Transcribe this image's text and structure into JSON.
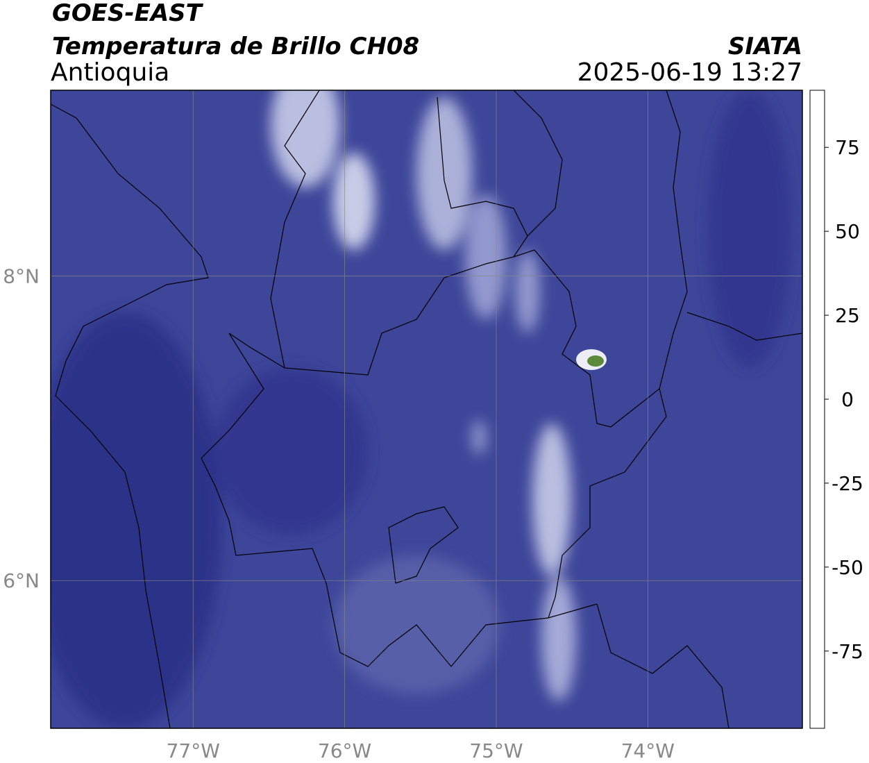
{
  "header": {
    "title": "GOES-EAST",
    "subtitle": "Temperatura de Brillo CH08",
    "region": "Antioquia",
    "source": "SIATA",
    "datetime": "2025-06-19 13:27"
  },
  "map": {
    "xlim": [
      -77.94,
      -72.98
    ],
    "ylim": [
      5.03,
      9.22
    ],
    "xticks": [
      {
        "value": -77,
        "label": "77°W"
      },
      {
        "value": -76,
        "label": "76°W"
      },
      {
        "value": -75,
        "label": "75°W"
      },
      {
        "value": -74,
        "label": "74°W"
      }
    ],
    "yticks": [
      {
        "value": 8,
        "label": "8°N"
      },
      {
        "value": 6,
        "label": "6°N"
      }
    ],
    "grid": true,
    "background": "#3d4699"
  },
  "colorbar": {
    "lim": [
      -98,
      92
    ],
    "ticks": [
      75,
      50,
      25,
      0,
      -25,
      -50,
      -75
    ],
    "stops": [
      {
        "value": -98,
        "color": "#ffffff"
      },
      {
        "value": -94,
        "color": "#ffffff"
      },
      {
        "value": -93,
        "color": "#00e5dc"
      },
      {
        "value": -80,
        "color": "#1fb08a"
      },
      {
        "value": -68,
        "color": "#3a8a2a"
      },
      {
        "value": -58,
        "color": "#a8c890"
      },
      {
        "value": -50,
        "color": "#ffffff"
      },
      {
        "value": -42,
        "color": "#8088c0"
      },
      {
        "value": -33,
        "color": "#2a2f8a"
      },
      {
        "value": -28,
        "color": "#000080"
      },
      {
        "value": -24,
        "color": "#3a3a50"
      },
      {
        "value": -20,
        "color": "#606060"
      },
      {
        "value": -15,
        "color": "#c8c800"
      },
      {
        "value": -10,
        "color": "#ffff00"
      },
      {
        "value": -4,
        "color": "#ff8c00"
      },
      {
        "value": 0,
        "color": "#ff3000"
      },
      {
        "value": 8,
        "color": "#ff0000"
      },
      {
        "value": 9,
        "color": "#000000"
      },
      {
        "value": 92,
        "color": "#000000"
      }
    ]
  }
}
